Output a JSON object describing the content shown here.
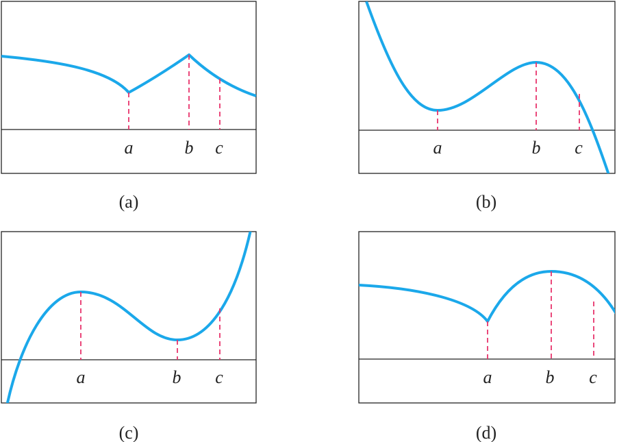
{
  "panels": [
    {
      "caption": "(a)",
      "points": [
        "a",
        "b",
        "c"
      ]
    },
    {
      "caption": "(b)",
      "points": [
        "a",
        "b",
        "c"
      ]
    },
    {
      "caption": "(c)",
      "points": [
        "a",
        "b",
        "c"
      ]
    },
    {
      "caption": "(d)",
      "points": [
        "a",
        "b",
        "c"
      ]
    }
  ]
}
